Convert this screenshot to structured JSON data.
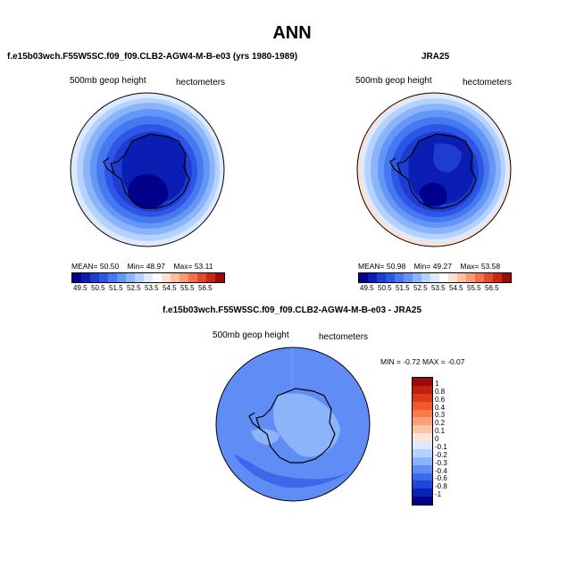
{
  "page_title": "ANN",
  "left_panel": {
    "case": "f.e15b03wch.F55W5SC.f09_f09.CLB2-AGW4-M-B-e03 (yrs 1980-1989)",
    "variable": "500mb geop height",
    "units": "hectometers",
    "stats": {
      "mean_label": "MEAN=",
      "mean": "50.50",
      "min_label": "Min=",
      "min": "48.97",
      "max_label": "Max=",
      "max": "53.11"
    }
  },
  "right_panel": {
    "case": "JRA25",
    "variable": "500mb geop height",
    "units": "hectometers",
    "stats": {
      "mean_label": "MEAN=",
      "mean": "50.98",
      "min_label": "Min=",
      "min": "49.27",
      "max_label": "Max=",
      "max": "53.58"
    }
  },
  "diff_panel": {
    "case": "f.e15b03wch.F55W5SC.f09_f09.CLB2-AGW4-M-B-e03 - JRA25",
    "variable": "500mb geop height",
    "units": "hectometers",
    "minmax": "MIN =   -0.72  MAX =   -0.07"
  },
  "abs_colorbar": {
    "labels": [
      "49.5",
      "50.5",
      "51.5",
      "52.5",
      "53.5",
      "54.5",
      "55.5",
      "56.5"
    ],
    "colors": [
      "#00008b",
      "#0a1eb4",
      "#1e3cd2",
      "#2d55e6",
      "#4678f0",
      "#6496f5",
      "#8cb4fa",
      "#b4d2ff",
      "#dce9ff",
      "#ffffff",
      "#fde0cf",
      "#fcbfa0",
      "#f99a73",
      "#f2724b",
      "#e14a2a",
      "#c82814",
      "#9b0a0a"
    ]
  },
  "diff_colorbar": {
    "labels": [
      "1",
      "0.8",
      "0.6",
      "0.4",
      "0.3",
      "0.2",
      "0.1",
      "0",
      "-0.1",
      "-0.2",
      "-0.3",
      "-0.4",
      "-0.6",
      "-0.8",
      "-1"
    ],
    "colors": [
      "#9b0a0a",
      "#c0200f",
      "#dc3a1a",
      "#f05a2d",
      "#f77c4c",
      "#fba07a",
      "#fcc4a8",
      "#fde6d8",
      "#dce9ff",
      "#b4d2ff",
      "#8cb4fa",
      "#5f8cf5",
      "#3c69eb",
      "#1e46d7",
      "#0a23b4",
      "#00008b"
    ]
  },
  "map_colors": {
    "ring_outer": "#ffffff",
    "levels": [
      "#dce9ff",
      "#b4d2ff",
      "#8cb4fa",
      "#6496f5",
      "#4678f0",
      "#2d55e6",
      "#1e3cd2",
      "#0a1eb4",
      "#00008b"
    ],
    "diff_background": "#5f8cf5",
    "diff_inner": "#3c69eb",
    "diff_light": "#8cb4fa"
  }
}
